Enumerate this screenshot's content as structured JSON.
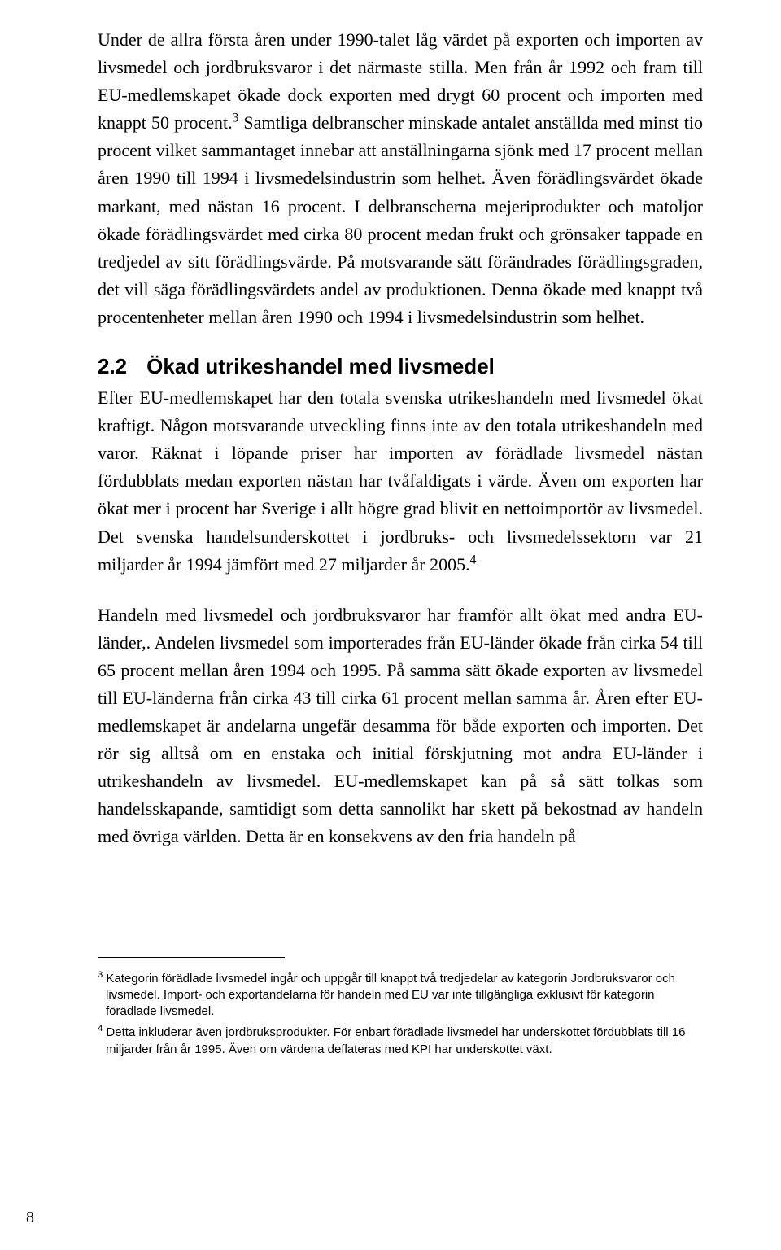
{
  "page": {
    "number": "8",
    "background_color": "#ffffff",
    "text_color": "#000000",
    "body_font": "Times New Roman",
    "heading_font": "Arial",
    "footnote_font": "Arial",
    "body_fontsize_pt": 16,
    "heading_fontsize_pt": 19,
    "footnote_fontsize_pt": 11
  },
  "paragraphs": {
    "p1_a": "Under de allra första åren under 1990-talet låg värdet på exporten och importen av livsmedel och jordbruksvaror i det närmaste stilla. Men från år 1992 och fram till EU-medlemskapet ökade dock exporten med drygt 60 procent och importen med knappt 50 procent.",
    "p1_sup": "3",
    "p1_b": " Samtliga delbranscher minskade antalet anställda med minst tio procent vilket sammantaget innebar att anställningarna sjönk med 17 procent mellan åren 1990 till 1994 i livsmedelsindustrin som helhet. Även förädlingsvärdet ökade markant, med nästan 16 procent. I delbranscherna mejeriprodukter och matoljor ökade förädlingsvärdet med cirka 80 procent medan frukt och grönsaker tappade en tredjedel av sitt förädlingsvärde. På motsvarande sätt förändrades förädlingsgraden, det vill säga förädlingsvärdets andel av produktionen. Denna ökade med knappt två procentenheter mellan åren 1990 och 1994 i livsmedelsindustrin som helhet.",
    "p2_a": "Efter EU-medlemskapet har den totala svenska utrikeshandeln med livsmedel ökat kraftigt. Någon motsvarande utveckling finns inte av den totala utrikeshandeln med varor. Räknat i löpande priser har importen av förädlade livsmedel nästan fördubblats medan exporten nästan har tvåfaldigats i värde. Även om exporten har ökat mer i procent har Sverige i allt högre grad blivit en nettoimportör av livsmedel. Det svenska handelsunderskottet i jordbruks- och livsmedelssektorn var 21 miljarder år 1994 jämfört med 27 miljarder år 2005.",
    "p2_sup": "4",
    "p3": "Handeln med livsmedel och jordbruksvaror har framför allt ökat med andra EU-länder,. Andelen livsmedel som importerades från EU-länder ökade från cirka 54 till 65 procent mellan åren 1994 och 1995. På samma sätt ökade exporten av livsmedel till EU-länderna från cirka 43 till cirka 61 procent mellan samma år. Åren efter EU-medlemskapet är andelarna ungefär desamma för både exporten och importen. Det rör sig alltså om en enstaka och initial förskjutning mot andra EU-länder i utrikeshandeln av livsmedel. EU-medlemskapet kan på så sätt tolkas som handelsskapande, samtidigt som detta sannolikt har skett på bekostnad av handeln med övriga världen. Detta är en konsekvens av den fria handeln på"
  },
  "heading": {
    "number": "2.2",
    "title": "Ökad utrikeshandel med livsmedel"
  },
  "footnotes": {
    "f3_marker": "3",
    "f3_text": " Kategorin förädlade livsmedel ingår och uppgår till knappt två tredjedelar av kategorin Jordbruksvaror och livsmedel. Import- och exportandelarna för handeln med EU var inte tillgängliga exklusivt för kategorin förädlade livsmedel.",
    "f4_marker": "4",
    "f4_text": " Detta inkluderar även jordbruksprodukter. För enbart förädlade livsmedel har underskottet fördubblats till 16 miljarder från år 1995. Även om värdena deflateras med KPI har underskottet växt."
  }
}
